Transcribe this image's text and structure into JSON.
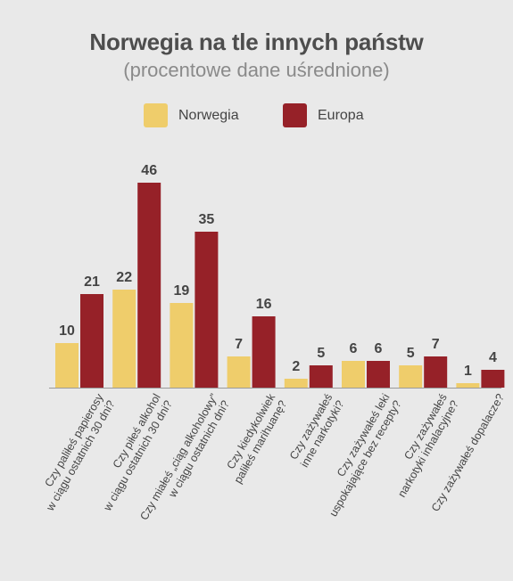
{
  "title": "Norwegia na tle innych państw",
  "subtitle": "(procentowe dane uśrednione)",
  "colors": {
    "norwegia": "#efcd6b",
    "europa": "#962128",
    "background": "#e9e9e9",
    "text": "#444444"
  },
  "chart_data": {
    "type": "bar",
    "title": "Norwegia na tle innych państw",
    "subtitle": "(procentowe dane uśrednione)",
    "xlabel": "",
    "ylabel": "",
    "grid": false,
    "legend_position": "top-center",
    "categories": [
      [
        "Czy paliłeś papierosy",
        "w ciągu ostatnich 30 dni?"
      ],
      [
        "Czy piłeś alkohol",
        "w ciągu ostatnich 30 dni?"
      ],
      [
        "Czy miałeś „ciąg alkoholowy”",
        "w ciągu ostatnich dni?"
      ],
      [
        "Czy kiedykolwiek",
        "paliłeś marihuanę?"
      ],
      [
        "Czy zażywałeś",
        "inne narkotyki?"
      ],
      [
        "Czy zażywałeś leki",
        "uspokajające bez recepty?"
      ],
      [
        "Czy zażywałeś",
        "narkotyki inhalacyjne?"
      ],
      [
        "Czy zażywałeś dopalacze?"
      ]
    ],
    "series": [
      {
        "name": "Norwegia",
        "color": "#efcd6b",
        "values": [
          10,
          22,
          19,
          7,
          2,
          6,
          5,
          1
        ]
      },
      {
        "name": "Europa",
        "color": "#962128",
        "values": [
          21,
          46,
          35,
          16,
          5,
          6,
          7,
          4
        ]
      }
    ],
    "ylim": [
      0,
      46
    ]
  }
}
